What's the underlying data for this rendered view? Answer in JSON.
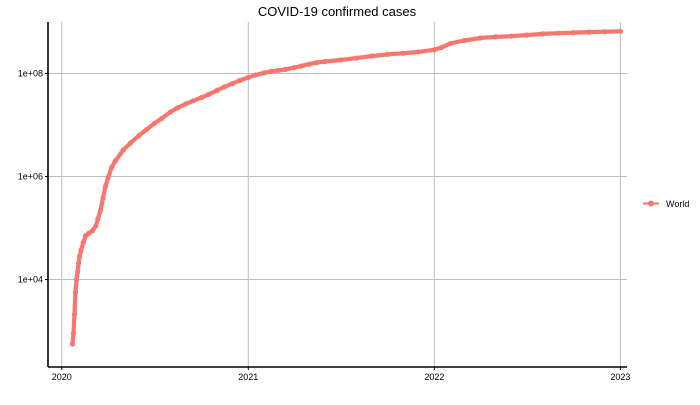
{
  "chart_data": {
    "type": "line",
    "title": "COVID-19 confirmed cases",
    "xlabel": "",
    "ylabel": "",
    "y_scale": "log10",
    "xlim": [
      "2019-12-05",
      "2023-01-14"
    ],
    "ylim": [
      200,
      1000000000
    ],
    "x_ticks": [
      "2020",
      "2021",
      "2022",
      "2023"
    ],
    "x_tick_values": [
      "2020-01-01",
      "2021-01-01",
      "2022-01-01",
      "2023-01-01"
    ],
    "y_ticks": [
      "1e+04",
      "1e+06",
      "1e+08"
    ],
    "y_tick_values": [
      10000,
      1000000,
      100000000
    ],
    "grid": true,
    "legend_position": "right",
    "series": [
      {
        "name": "World",
        "color": "#F8766D",
        "x": [
          "2020-01-22",
          "2020-01-24",
          "2020-01-26",
          "2020-01-28",
          "2020-01-30",
          "2020-02-01",
          "2020-02-03",
          "2020-02-05",
          "2020-02-08",
          "2020-02-12",
          "2020-02-17",
          "2020-02-22",
          "2020-03-01",
          "2020-03-08",
          "2020-03-12",
          "2020-03-17",
          "2020-03-22",
          "2020-03-27",
          "2020-04-01",
          "2020-04-08",
          "2020-04-15",
          "2020-05-01",
          "2020-05-15",
          "2020-06-01",
          "2020-06-15",
          "2020-07-01",
          "2020-07-15",
          "2020-08-01",
          "2020-08-15",
          "2020-09-01",
          "2020-09-15",
          "2020-10-01",
          "2020-10-15",
          "2020-11-01",
          "2020-11-15",
          "2020-12-01",
          "2020-12-15",
          "2021-01-01",
          "2021-01-15",
          "2021-02-01",
          "2021-02-15",
          "2021-03-01",
          "2021-03-15",
          "2021-04-01",
          "2021-04-15",
          "2021-05-01",
          "2021-05-15",
          "2021-06-01",
          "2021-07-01",
          "2021-08-01",
          "2021-09-01",
          "2021-10-01",
          "2021-11-01",
          "2021-12-01",
          "2022-01-01",
          "2022-01-15",
          "2022-02-01",
          "2022-03-01",
          "2022-04-01",
          "2022-05-01",
          "2022-06-01",
          "2022-07-01",
          "2022-08-01",
          "2022-09-01",
          "2022-10-01",
          "2022-11-01",
          "2022-12-01",
          "2023-01-01"
        ],
        "values": [
          560,
          900,
          2100,
          5600,
          9900,
          14000,
          20500,
          28000,
          37000,
          52000,
          71000,
          78000,
          88000,
          110000,
          150000,
          220000,
          380000,
          650000,
          950000,
          1500000,
          2000000,
          3300000,
          4500000,
          6300000,
          8100000,
          10800000,
          13400000,
          17800000,
          21500000,
          25800000,
          29500000,
          34000000,
          39200000,
          47000000,
          55000000,
          64000000,
          73000000,
          84000000,
          93000000,
          103000000,
          110000000,
          115000000,
          120000000,
          130000000,
          139000000,
          152000000,
          163000000,
          171000000,
          183000000,
          199000000,
          219000000,
          235000000,
          247000000,
          263000000,
          289000000,
          320000000,
          380000000,
          437000000,
          488000000,
          513000000,
          531000000,
          557000000,
          587000000,
          606000000,
          623000000,
          637000000,
          649000000,
          661000000
        ]
      }
    ]
  }
}
